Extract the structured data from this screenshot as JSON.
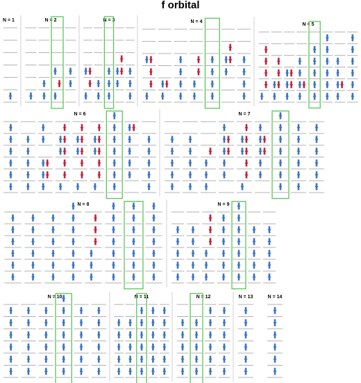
{
  "title": "f orbital",
  "colors": {
    "spin_up": "#3b73c2",
    "spin_down": "#c4213b",
    "level_line": "#b0b0b0",
    "highlight": "#59c659"
  },
  "levels_per_column": 7,
  "panels": [
    {
      "label": "N = 1",
      "columns": [
        [
          [
            0,
            1
          ]
        ]
      ],
      "highlight": null
    },
    {
      "label": "N = 2",
      "columns": [
        [
          [
            0,
            1
          ]
        ],
        [
          [
            0,
            2
          ]
        ],
        [
          [
            0,
            1
          ],
          [
            1,
            1
          ],
          [
            2,
            1
          ]
        ],
        [
          [
            1,
            2
          ]
        ]
      ],
      "highlight": 2
    },
    {
      "label": "N = 3",
      "columns": [
        [
          [
            0,
            1
          ],
          [
            1,
            2
          ],
          [
            2,
            1
          ]
        ],
        [
          [
            0,
            2
          ]
        ],
        [
          [
            0,
            3
          ]
        ],
        [
          [
            1,
            2
          ],
          [
            2,
            2
          ]
        ],
        [
          [
            0,
            3
          ]
        ]
      ],
      "highlight": 2
    },
    {
      "label": "N = 4",
      "columns": [
        [
          [
            0,
            1
          ],
          [
            1,
            3
          ],
          [
            3,
            1
          ]
        ],
        [
          [
            0,
            2
          ],
          [
            1,
            1
          ]
        ],
        [
          [
            0,
            4
          ]
        ],
        [
          [
            0,
            2
          ],
          [
            2,
            2
          ]
        ],
        [
          [
            0,
            4
          ]
        ],
        [
          [
            2,
            2
          ],
          [
            3,
            2
          ]
        ],
        [
          [
            0,
            4
          ]
        ]
      ],
      "highlight": 4
    },
    {
      "label": "N = 5",
      "columns": [
        [
          [
            0,
            1
          ],
          [
            1,
            4
          ]
        ],
        [
          [
            0,
            2
          ],
          [
            1,
            3
          ]
        ],
        [
          [
            0,
            3
          ],
          [
            1,
            2
          ]
        ],
        [
          [
            0,
            4
          ],
          [
            1,
            1
          ]
        ],
        [
          [
            0,
            5
          ]
        ],
        [
          [
            0,
            6
          ]
        ],
        [
          [
            0,
            4
          ],
          [
            1,
            1
          ]
        ],
        [
          [
            0,
            6
          ]
        ]
      ],
      "highlight": 4
    },
    {
      "label": "N = 6",
      "columns": [
        [
          [
            0,
            6
          ]
        ],
        [
          [
            0,
            5
          ]
        ],
        [
          [
            0,
            3
          ],
          [
            1,
            2
          ],
          [
            4,
            2
          ]
        ],
        [
          [
            0,
            1
          ],
          [
            1,
            3
          ],
          [
            3,
            2
          ],
          [
            4,
            2
          ]
        ],
        [
          [
            0,
            1
          ],
          [
            1,
            3
          ],
          [
            3,
            2
          ],
          [
            4,
            2
          ]
        ],
        [
          [
            0,
            1
          ],
          [
            1,
            3
          ],
          [
            3,
            2
          ],
          [
            4,
            2
          ]
        ],
        [
          [
            0,
            7
          ]
        ],
        [
          [
            1,
            5
          ],
          [
            5,
            1
          ]
        ],
        [
          [
            0,
            5
          ]
        ]
      ],
      "highlight": 6
    },
    {
      "label": "N = 7",
      "columns": [
        [
          [
            0,
            5
          ]
        ],
        [
          [
            0,
            5
          ]
        ],
        [
          [
            0,
            3
          ],
          [
            3,
            1
          ]
        ],
        [
          [
            1,
            3
          ],
          [
            3,
            2
          ],
          [
            4,
            2
          ]
        ],
        [
          [
            0,
            1
          ],
          [
            1,
            3
          ],
          [
            3,
            2
          ],
          [
            4,
            2
          ]
        ],
        [
          [
            1,
            3
          ],
          [
            3,
            2
          ],
          [
            4,
            2
          ]
        ],
        [
          [
            0,
            7
          ]
        ],
        [
          [
            0,
            6
          ]
        ],
        [
          [
            0,
            6
          ]
        ]
      ],
      "highlight": 6
    },
    {
      "label": "N = 8",
      "columns": [
        [
          [
            0,
            6
          ]
        ],
        [
          [
            0,
            6
          ]
        ],
        [
          [
            0,
            6
          ]
        ],
        [
          [
            0,
            7
          ]
        ],
        [
          [
            0,
            3
          ],
          [
            3,
            3
          ]
        ],
        [
          [
            0,
            7
          ]
        ],
        [
          [
            0,
            7
          ]
        ],
        [
          [
            0,
            7
          ]
        ]
      ],
      "highlight": 6
    },
    {
      "label": "N = 9",
      "columns": [
        [
          [
            0,
            5
          ]
        ],
        [
          [
            0,
            5
          ]
        ],
        [
          [
            0,
            3
          ],
          [
            3,
            3
          ]
        ],
        [
          [
            0,
            6
          ]
        ],
        [
          [
            0,
            7
          ]
        ],
        [
          [
            0,
            5
          ]
        ],
        [
          [
            0,
            5
          ]
        ]
      ],
      "highlight": 4
    },
    {
      "label": "N = 10",
      "columns": [
        [
          [
            0,
            6
          ]
        ],
        [
          [
            0,
            6
          ]
        ],
        [
          [
            0,
            6
          ]
        ],
        [
          [
            0,
            7
          ]
        ],
        [
          [
            0,
            6
          ]
        ],
        [
          [
            0,
            6
          ]
        ]
      ],
      "highlight": 3
    },
    {
      "label": "N = 11",
      "columns": [
        [
          [
            0,
            5
          ]
        ],
        [
          [
            0,
            5
          ]
        ],
        [
          [
            0,
            6
          ]
        ],
        [
          [
            0,
            6
          ]
        ],
        [
          [
            0,
            6
          ]
        ]
      ],
      "highlight": 2
    },
    {
      "label": "N = 12",
      "columns": [
        [
          [
            0,
            5
          ]
        ],
        [
          [
            0,
            5
          ]
        ],
        [
          [
            0,
            6
          ]
        ],
        [
          [
            0,
            6
          ]
        ]
      ],
      "highlight": 1
    },
    {
      "label": "N = 13",
      "columns": [
        [
          [
            0,
            6
          ]
        ]
      ],
      "highlight": null
    },
    {
      "label": "N = 14",
      "columns": [
        [
          [
            0,
            6
          ]
        ]
      ],
      "highlight": null
    }
  ]
}
